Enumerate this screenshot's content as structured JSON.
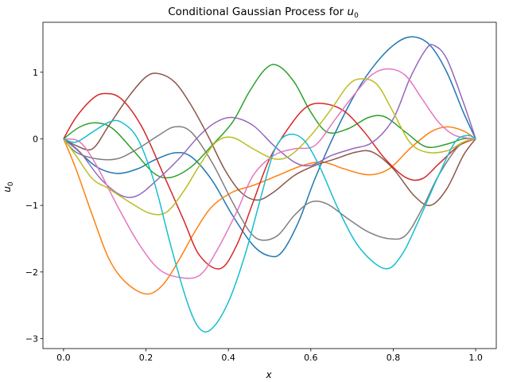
{
  "chart_data": {
    "type": "line",
    "title": "Conditional Gaussian Process for ",
    "title_math": "u",
    "title_sub": "0",
    "xlabel": "x",
    "ylabel": "u",
    "ylabel_sub": "0",
    "xlim": [
      -0.05,
      1.05
    ],
    "ylim": [
      -3.15,
      1.75
    ],
    "xticks": [
      0.0,
      0.2,
      0.4,
      0.6,
      0.8,
      1.0
    ],
    "xtick_labels": [
      "0.0",
      "0.2",
      "0.4",
      "0.6",
      "0.8",
      "1.0"
    ],
    "yticks": [
      -3,
      -2,
      -1,
      0,
      1
    ],
    "ytick_labels": [
      "−3",
      "−2",
      "−1",
      "0",
      "1"
    ],
    "grid": false,
    "legend": "none",
    "series": [
      {
        "color": "#1f77b4",
        "points": [
          [
            0,
            0
          ],
          [
            0.03,
            -0.15
          ],
          [
            0.08,
            -0.42
          ],
          [
            0.13,
            -0.52
          ],
          [
            0.18,
            -0.45
          ],
          [
            0.22,
            -0.32
          ],
          [
            0.27,
            -0.21
          ],
          [
            0.31,
            -0.27
          ],
          [
            0.36,
            -0.62
          ],
          [
            0.41,
            -1.15
          ],
          [
            0.46,
            -1.6
          ],
          [
            0.5,
            -1.76
          ],
          [
            0.53,
            -1.7
          ],
          [
            0.57,
            -1.25
          ],
          [
            0.61,
            -0.6
          ],
          [
            0.66,
            0.1
          ],
          [
            0.71,
            0.7
          ],
          [
            0.76,
            1.15
          ],
          [
            0.81,
            1.45
          ],
          [
            0.85,
            1.53
          ],
          [
            0.89,
            1.4
          ],
          [
            0.93,
            1.0
          ],
          [
            0.97,
            0.4
          ],
          [
            1,
            0
          ]
        ]
      },
      {
        "color": "#ff7f0e",
        "points": [
          [
            0,
            0
          ],
          [
            0.03,
            -0.45
          ],
          [
            0.07,
            -1.15
          ],
          [
            0.11,
            -1.8
          ],
          [
            0.15,
            -2.15
          ],
          [
            0.2,
            -2.33
          ],
          [
            0.24,
            -2.2
          ],
          [
            0.28,
            -1.82
          ],
          [
            0.32,
            -1.38
          ],
          [
            0.36,
            -1.02
          ],
          [
            0.41,
            -0.8
          ],
          [
            0.46,
            -0.7
          ],
          [
            0.52,
            -0.55
          ],
          [
            0.58,
            -0.4
          ],
          [
            0.63,
            -0.35
          ],
          [
            0.68,
            -0.45
          ],
          [
            0.74,
            -0.54
          ],
          [
            0.79,
            -0.45
          ],
          [
            0.84,
            -0.15
          ],
          [
            0.89,
            0.1
          ],
          [
            0.93,
            0.18
          ],
          [
            0.97,
            0.12
          ],
          [
            1,
            0
          ]
        ]
      },
      {
        "color": "#2ca02c",
        "points": [
          [
            0,
            0
          ],
          [
            0.04,
            0.18
          ],
          [
            0.08,
            0.24
          ],
          [
            0.12,
            0.15
          ],
          [
            0.17,
            -0.18
          ],
          [
            0.22,
            -0.52
          ],
          [
            0.26,
            -0.58
          ],
          [
            0.31,
            -0.42
          ],
          [
            0.36,
            -0.1
          ],
          [
            0.41,
            0.25
          ],
          [
            0.45,
            0.7
          ],
          [
            0.49,
            1.05
          ],
          [
            0.52,
            1.1
          ],
          [
            0.56,
            0.85
          ],
          [
            0.6,
            0.4
          ],
          [
            0.64,
            0.1
          ],
          [
            0.69,
            0.15
          ],
          [
            0.74,
            0.32
          ],
          [
            0.78,
            0.33
          ],
          [
            0.83,
            0.1
          ],
          [
            0.88,
            -0.12
          ],
          [
            0.93,
            -0.08
          ],
          [
            0.97,
            0.0
          ],
          [
            1,
            0
          ]
        ]
      },
      {
        "color": "#d62728",
        "points": [
          [
            0,
            0
          ],
          [
            0.03,
            0.32
          ],
          [
            0.07,
            0.6
          ],
          [
            0.1,
            0.68
          ],
          [
            0.14,
            0.6
          ],
          [
            0.19,
            0.18
          ],
          [
            0.24,
            -0.5
          ],
          [
            0.29,
            -1.2
          ],
          [
            0.33,
            -1.75
          ],
          [
            0.38,
            -1.95
          ],
          [
            0.42,
            -1.6
          ],
          [
            0.46,
            -0.95
          ],
          [
            0.5,
            -0.3
          ],
          [
            0.55,
            0.2
          ],
          [
            0.59,
            0.48
          ],
          [
            0.63,
            0.53
          ],
          [
            0.68,
            0.42
          ],
          [
            0.73,
            0.1
          ],
          [
            0.78,
            -0.3
          ],
          [
            0.83,
            -0.58
          ],
          [
            0.87,
            -0.6
          ],
          [
            0.91,
            -0.38
          ],
          [
            0.96,
            -0.1
          ],
          [
            1,
            0
          ]
        ]
      },
      {
        "color": "#9467bd",
        "points": [
          [
            0,
            0
          ],
          [
            0.04,
            -0.2
          ],
          [
            0.09,
            -0.6
          ],
          [
            0.14,
            -0.85
          ],
          [
            0.18,
            -0.85
          ],
          [
            0.23,
            -0.6
          ],
          [
            0.28,
            -0.3
          ],
          [
            0.33,
            0.05
          ],
          [
            0.37,
            0.25
          ],
          [
            0.41,
            0.32
          ],
          [
            0.46,
            0.2
          ],
          [
            0.51,
            -0.1
          ],
          [
            0.56,
            -0.35
          ],
          [
            0.6,
            -0.4
          ],
          [
            0.65,
            -0.25
          ],
          [
            0.7,
            -0.15
          ],
          [
            0.75,
            -0.05
          ],
          [
            0.8,
            0.3
          ],
          [
            0.84,
            0.9
          ],
          [
            0.88,
            1.35
          ],
          [
            0.9,
            1.4
          ],
          [
            0.93,
            1.2
          ],
          [
            0.97,
            0.55
          ],
          [
            1,
            0
          ]
        ]
      },
      {
        "color": "#8c564b",
        "points": [
          [
            0,
            0
          ],
          [
            0.03,
            -0.1
          ],
          [
            0.07,
            -0.15
          ],
          [
            0.11,
            0.2
          ],
          [
            0.16,
            0.65
          ],
          [
            0.2,
            0.93
          ],
          [
            0.23,
            0.98
          ],
          [
            0.27,
            0.85
          ],
          [
            0.31,
            0.5
          ],
          [
            0.35,
            0.05
          ],
          [
            0.39,
            -0.45
          ],
          [
            0.43,
            -0.8
          ],
          [
            0.47,
            -0.92
          ],
          [
            0.51,
            -0.8
          ],
          [
            0.56,
            -0.55
          ],
          [
            0.61,
            -0.4
          ],
          [
            0.66,
            -0.3
          ],
          [
            0.71,
            -0.2
          ],
          [
            0.75,
            -0.2
          ],
          [
            0.8,
            -0.45
          ],
          [
            0.85,
            -0.85
          ],
          [
            0.89,
            -1.0
          ],
          [
            0.93,
            -0.75
          ],
          [
            0.97,
            -0.25
          ],
          [
            1,
            0
          ]
        ]
      },
      {
        "color": "#e377c2",
        "points": [
          [
            0,
            0
          ],
          [
            0.04,
            -0.05
          ],
          [
            0.08,
            -0.4
          ],
          [
            0.13,
            -1.0
          ],
          [
            0.18,
            -1.55
          ],
          [
            0.23,
            -1.95
          ],
          [
            0.28,
            -2.08
          ],
          [
            0.33,
            -2.05
          ],
          [
            0.37,
            -1.7
          ],
          [
            0.42,
            -1.1
          ],
          [
            0.46,
            -0.55
          ],
          [
            0.51,
            -0.25
          ],
          [
            0.56,
            -0.15
          ],
          [
            0.61,
            -0.1
          ],
          [
            0.66,
            0.3
          ],
          [
            0.71,
            0.7
          ],
          [
            0.75,
            0.97
          ],
          [
            0.79,
            1.05
          ],
          [
            0.83,
            0.95
          ],
          [
            0.87,
            0.6
          ],
          [
            0.91,
            0.25
          ],
          [
            0.95,
            0.05
          ],
          [
            1,
            0
          ]
        ]
      },
      {
        "color": "#7f7f7f",
        "points": [
          [
            0,
            0
          ],
          [
            0.03,
            -0.2
          ],
          [
            0.08,
            -0.3
          ],
          [
            0.13,
            -0.3
          ],
          [
            0.18,
            -0.15
          ],
          [
            0.23,
            0.05
          ],
          [
            0.27,
            0.18
          ],
          [
            0.31,
            0.1
          ],
          [
            0.36,
            -0.35
          ],
          [
            0.41,
            -0.95
          ],
          [
            0.45,
            -1.38
          ],
          [
            0.48,
            -1.52
          ],
          [
            0.52,
            -1.45
          ],
          [
            0.56,
            -1.15
          ],
          [
            0.6,
            -0.95
          ],
          [
            0.64,
            -0.98
          ],
          [
            0.69,
            -1.2
          ],
          [
            0.74,
            -1.4
          ],
          [
            0.79,
            -1.5
          ],
          [
            0.83,
            -1.45
          ],
          [
            0.87,
            -1.05
          ],
          [
            0.91,
            -0.55
          ],
          [
            0.96,
            -0.1
          ],
          [
            1,
            0
          ]
        ]
      },
      {
        "color": "#bcbd22",
        "points": [
          [
            0,
            0
          ],
          [
            0.03,
            -0.25
          ],
          [
            0.07,
            -0.6
          ],
          [
            0.11,
            -0.75
          ],
          [
            0.16,
            -0.95
          ],
          [
            0.21,
            -1.12
          ],
          [
            0.25,
            -1.1
          ],
          [
            0.29,
            -0.8
          ],
          [
            0.33,
            -0.4
          ],
          [
            0.37,
            -0.05
          ],
          [
            0.41,
            0.02
          ],
          [
            0.46,
            -0.15
          ],
          [
            0.51,
            -0.3
          ],
          [
            0.55,
            -0.25
          ],
          [
            0.6,
            0.05
          ],
          [
            0.65,
            0.45
          ],
          [
            0.69,
            0.8
          ],
          [
            0.72,
            0.9
          ],
          [
            0.76,
            0.82
          ],
          [
            0.8,
            0.4
          ],
          [
            0.84,
            -0.05
          ],
          [
            0.88,
            -0.2
          ],
          [
            0.93,
            -0.18
          ],
          [
            0.97,
            -0.05
          ],
          [
            1,
            0
          ]
        ]
      },
      {
        "color": "#17becf",
        "points": [
          [
            0,
            0
          ],
          [
            0.03,
            -0.05
          ],
          [
            0.07,
            0.1
          ],
          [
            0.11,
            0.25
          ],
          [
            0.14,
            0.25
          ],
          [
            0.18,
            0.0
          ],
          [
            0.22,
            -0.65
          ],
          [
            0.26,
            -1.6
          ],
          [
            0.3,
            -2.45
          ],
          [
            0.33,
            -2.85
          ],
          [
            0.36,
            -2.85
          ],
          [
            0.4,
            -2.45
          ],
          [
            0.44,
            -1.75
          ],
          [
            0.48,
            -0.85
          ],
          [
            0.51,
            -0.2
          ],
          [
            0.54,
            0.05
          ],
          [
            0.58,
            0.0
          ],
          [
            0.62,
            -0.4
          ],
          [
            0.67,
            -1.1
          ],
          [
            0.72,
            -1.65
          ],
          [
            0.78,
            -1.95
          ],
          [
            0.82,
            -1.75
          ],
          [
            0.86,
            -1.25
          ],
          [
            0.91,
            -0.55
          ],
          [
            0.95,
            -0.05
          ],
          [
            0.98,
            0.05
          ],
          [
            1,
            0
          ]
        ]
      }
    ]
  }
}
